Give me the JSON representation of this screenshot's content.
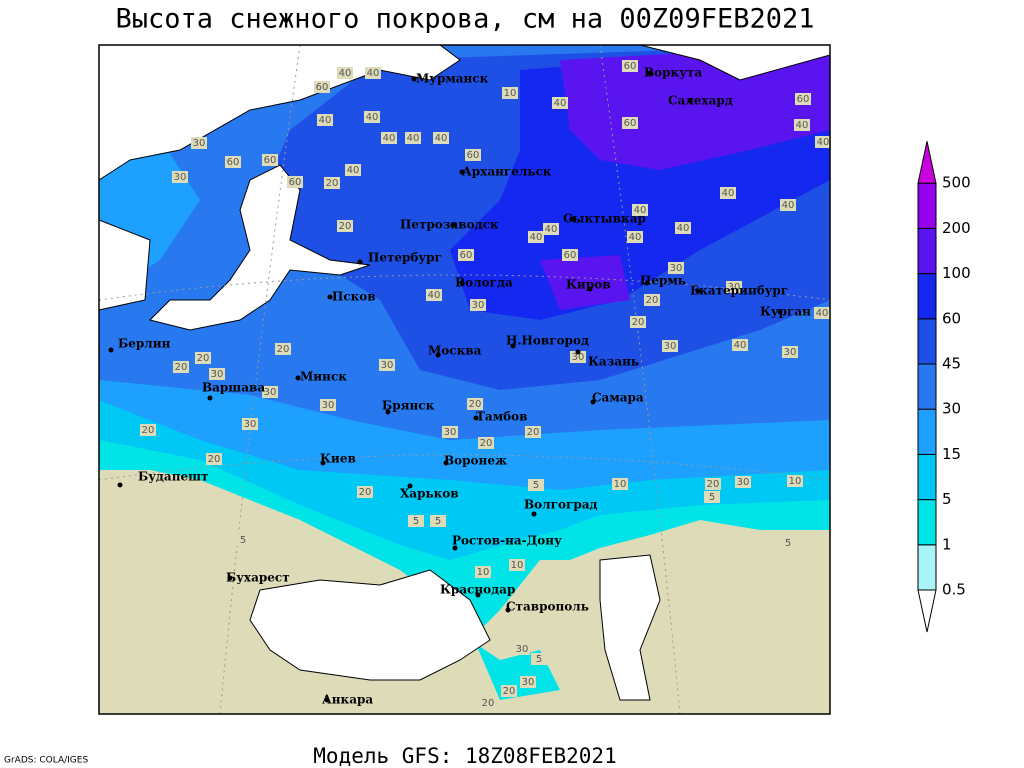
{
  "title": "Высота снежного покрова, см на 00Z09FEB2021",
  "footer": {
    "credit": "GrADS: COLA/IGES",
    "model": "Модель GFS: 18Z08FEB2021"
  },
  "legend": {
    "levels": [
      0.5,
      1,
      5,
      15,
      30,
      45,
      60,
      100,
      200,
      500
    ],
    "colors": [
      "#ffffff",
      "#a8f4f8",
      "#00e4e8",
      "#00c8f4",
      "#1ea0ff",
      "#2878f0",
      "#1e50e6",
      "#1428f0",
      "#5a14f0",
      "#9600f0",
      "#c800dc"
    ]
  },
  "cities": [
    "Мурманск",
    "Воркута",
    "Салехард",
    "Архангельск",
    "Сыктывкар",
    "Петрозаводск",
    "Петербург",
    "Вологда",
    "Киров",
    "Пермь",
    "Екатеринбург",
    "Курган",
    "Псков",
    "Н.Новгород",
    "Москва",
    "Казань",
    "Берлин",
    "Минск",
    "Варшава",
    "Самара",
    "Брянск",
    "Тамбов",
    "Киев",
    "Воронеж",
    "Будапешт",
    "Харьков",
    "Волгоград",
    "Ростов-на-Дону",
    "Бухарест",
    "Краснодар",
    "Ставрополь",
    "Анкара"
  ],
  "contour_labels": [
    40,
    60,
    40,
    40,
    40,
    40,
    40,
    60,
    40,
    30,
    60,
    60,
    30,
    60,
    20,
    40,
    20,
    10,
    40,
    60,
    60,
    60,
    40,
    40,
    40,
    40,
    40,
    40,
    40,
    40,
    40,
    60,
    60,
    30,
    20,
    30,
    40,
    40,
    30,
    20,
    30,
    40,
    30,
    20,
    20,
    20,
    30,
    30,
    30,
    30,
    30,
    30,
    20,
    20,
    20,
    30,
    20,
    20,
    20,
    10,
    20,
    30,
    10,
    5,
    5,
    5,
    5,
    5,
    5,
    10,
    10,
    30,
    5,
    20,
    20,
    30
  ]
}
